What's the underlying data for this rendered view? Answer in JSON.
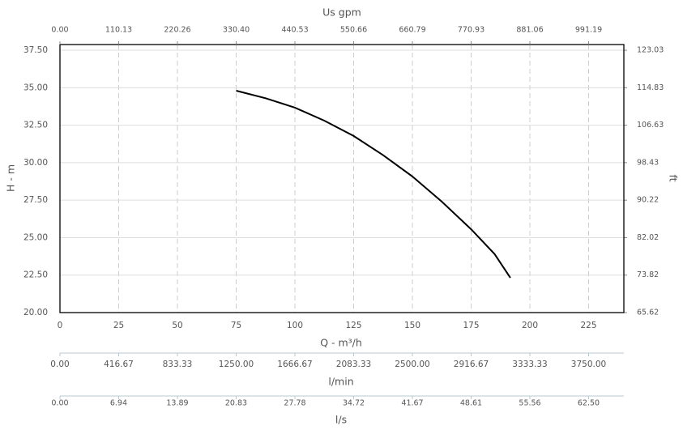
{
  "chart_data": {
    "type": "line",
    "x": [
      75,
      87.5,
      100,
      112.5,
      125,
      137.5,
      150,
      162.5,
      175,
      185,
      191.7
    ],
    "values": [
      34.8,
      34.3,
      33.67,
      32.8,
      31.78,
      30.5,
      29.08,
      27.4,
      25.56,
      23.9,
      22.32
    ],
    "color": "#000000",
    "xlabel": "Q - m³/h",
    "xlim": [
      0,
      240
    ],
    "xticks": [
      0,
      25,
      50,
      75,
      100,
      125,
      150,
      175,
      200,
      225
    ],
    "ylabel": "H - m",
    "ylim": [
      20,
      37.88
    ],
    "yticks": [
      {
        "value": 20,
        "label": "20.00"
      },
      {
        "value": 22.5,
        "label": "22.50"
      },
      {
        "value": 25,
        "label": "25.00"
      },
      {
        "value": 27.5,
        "label": "27.50"
      },
      {
        "value": 30,
        "label": "30.00"
      },
      {
        "value": 32.5,
        "label": "32.50"
      },
      {
        "value": 35,
        "label": "35.00"
      },
      {
        "value": 37.5,
        "label": "37.50"
      }
    ],
    "y2label": "ft",
    "y2lim": [
      65.62,
      124.28
    ],
    "y2ticks": [
      65.62,
      73.82,
      82.02,
      90.22,
      98.43,
      106.63,
      114.83,
      123.03
    ],
    "grid": true,
    "top_axis": {
      "label": "Us gpm",
      "lim": [
        0,
        1057.25
      ],
      "ticks": [
        {
          "value": 0,
          "label": "0.00"
        },
        110.13,
        220.26,
        {
          "value": 330.4,
          "label": "330.40"
        },
        440.53,
        550.66,
        660.79,
        770.93,
        881.06,
        991.19
      ]
    },
    "extra_axes": [
      {
        "label": "l/min",
        "lim": [
          0,
          4000
        ],
        "ticks": [
          {
            "value": 0,
            "label": "0.00"
          },
          416.67,
          833.33,
          {
            "value": 1250,
            "label": "1250.00"
          },
          1666.67,
          2083.33,
          {
            "value": 2500,
            "label": "2500.00"
          },
          2916.67,
          3333.33,
          {
            "value": 3750,
            "label": "3750.00"
          }
        ]
      },
      {
        "label": "l/s",
        "lim": [
          0,
          66.67
        ],
        "ticks": [
          {
            "value": 0,
            "label": "0.00"
          },
          6.94,
          13.89,
          20.83,
          27.78,
          34.72,
          41.67,
          48.61,
          55.56,
          {
            "value": 62.5,
            "label": "62.50"
          }
        ]
      }
    ]
  }
}
